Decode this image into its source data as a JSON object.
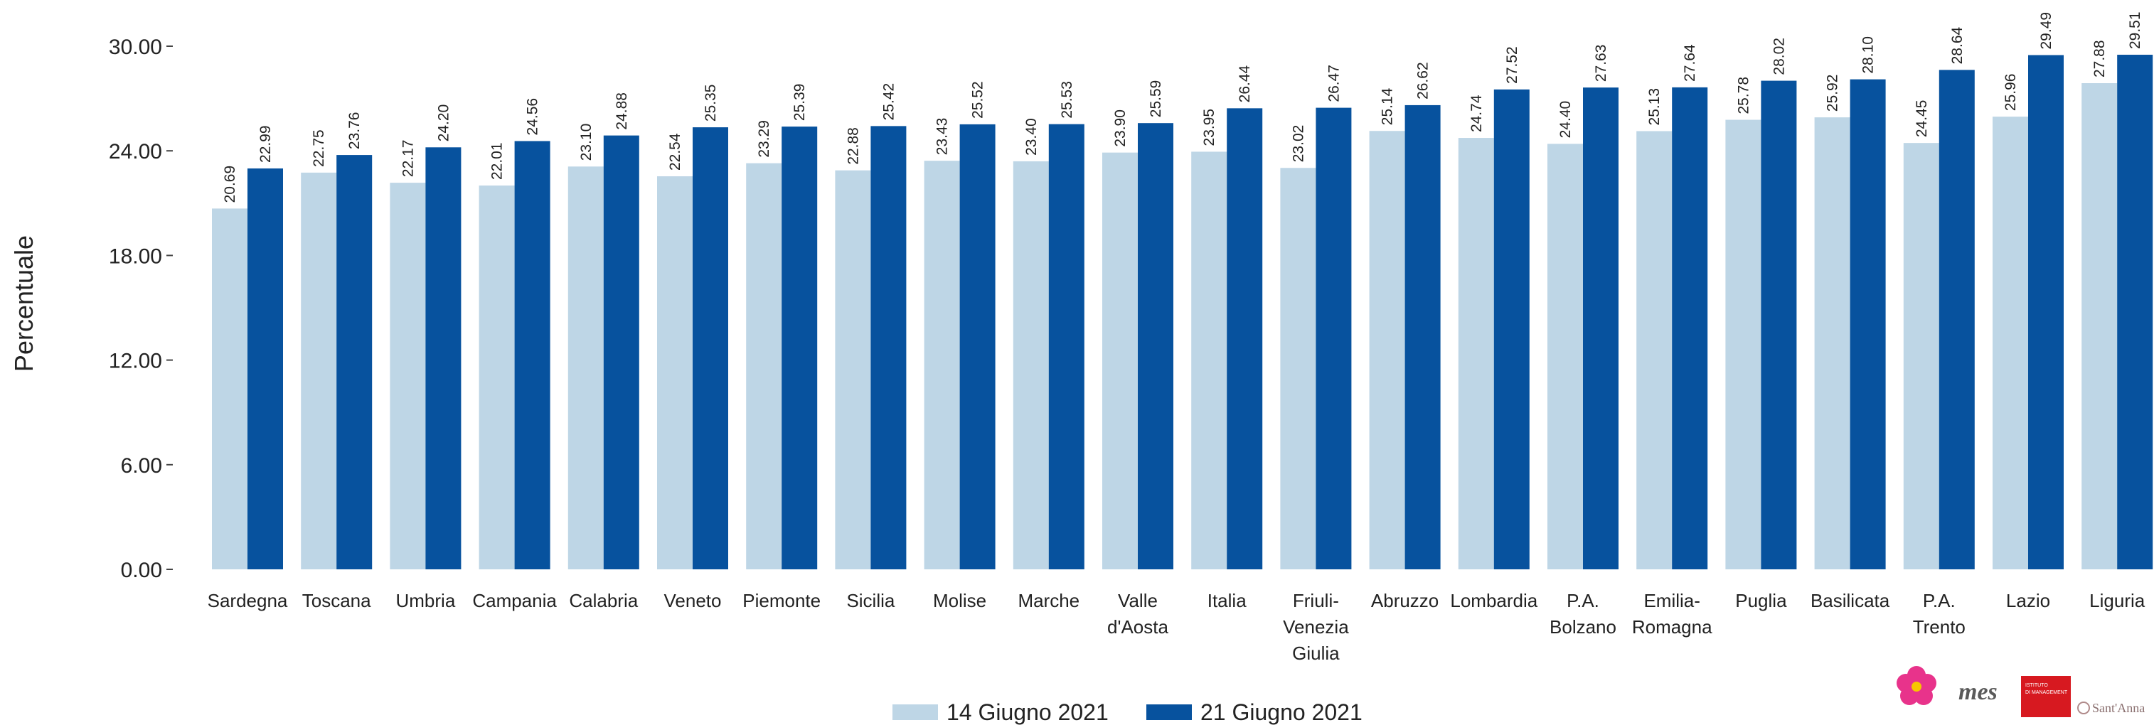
{
  "chart_data": {
    "type": "bar",
    "ylabel": "Percentuale",
    "ylim": [
      0,
      30
    ],
    "y_ticks": [
      "0.00",
      "6.00",
      "12.00",
      "18.00",
      "24.00",
      "30.00"
    ],
    "grid": false,
    "legend_position": "bottom",
    "categories": [
      "Sardegna",
      "Toscana",
      "Umbria",
      "Campania",
      "Calabria",
      "Veneto",
      "Piemonte",
      "Sicilia",
      "Molise",
      "Marche",
      "Valle d'Aosta",
      "Italia",
      "Friuli- Venezia Giulia",
      "Abruzzo",
      "Lombardia",
      "P.A. Bolzano",
      "Emilia- Romagna",
      "Puglia",
      "Basilicata",
      "P.A. Trento",
      "Lazio",
      "Liguria"
    ],
    "series": [
      {
        "name": "14 Giugno 2021",
        "color": "#bed6e6",
        "values": [
          20.69,
          22.75,
          22.17,
          22.01,
          23.1,
          22.54,
          23.29,
          22.88,
          23.43,
          23.4,
          23.9,
          23.95,
          23.02,
          25.14,
          24.74,
          24.4,
          25.13,
          25.78,
          25.92,
          24.45,
          25.96,
          27.88
        ],
        "labels": [
          "20.69",
          "22.75",
          "22.17",
          "22.01",
          "23.10",
          "22.54",
          "23.29",
          "22.88",
          "23.43",
          "23.40",
          "23.90",
          "23.95",
          "23.02",
          "25.14",
          "24.74",
          "24.40",
          "25.13",
          "25.78",
          "25.92",
          "24.45",
          "25.96",
          "27.88"
        ]
      },
      {
        "name": "21 Giugno 2021",
        "color": "#07529e",
        "values": [
          22.99,
          23.76,
          24.2,
          24.56,
          24.88,
          25.35,
          25.39,
          25.42,
          25.52,
          25.53,
          25.59,
          26.44,
          26.47,
          26.62,
          27.52,
          27.63,
          27.64,
          28.02,
          28.1,
          28.64,
          29.49,
          29.51
        ],
        "labels": [
          "22.99",
          "23.76",
          "24.20",
          "24.56",
          "24.88",
          "25.35",
          "25.39",
          "25.42",
          "25.52",
          "25.53",
          "25.59",
          "26.44",
          "26.47",
          "26.62",
          "27.52",
          "27.63",
          "27.64",
          "28.02",
          "28.10",
          "28.64",
          "29.49",
          "29.51"
        ]
      }
    ]
  },
  "logos": [
    {
      "name": "flower-logo-icon",
      "color": "#e8338b"
    },
    {
      "name": "mes-logo",
      "text": "mes"
    },
    {
      "name": "istituto-management-logo",
      "text": "ISTITUTO DI MANAGEMENT",
      "color": "#d71920"
    },
    {
      "name": "santanna-logo",
      "text": "Sant'Anna"
    }
  ]
}
